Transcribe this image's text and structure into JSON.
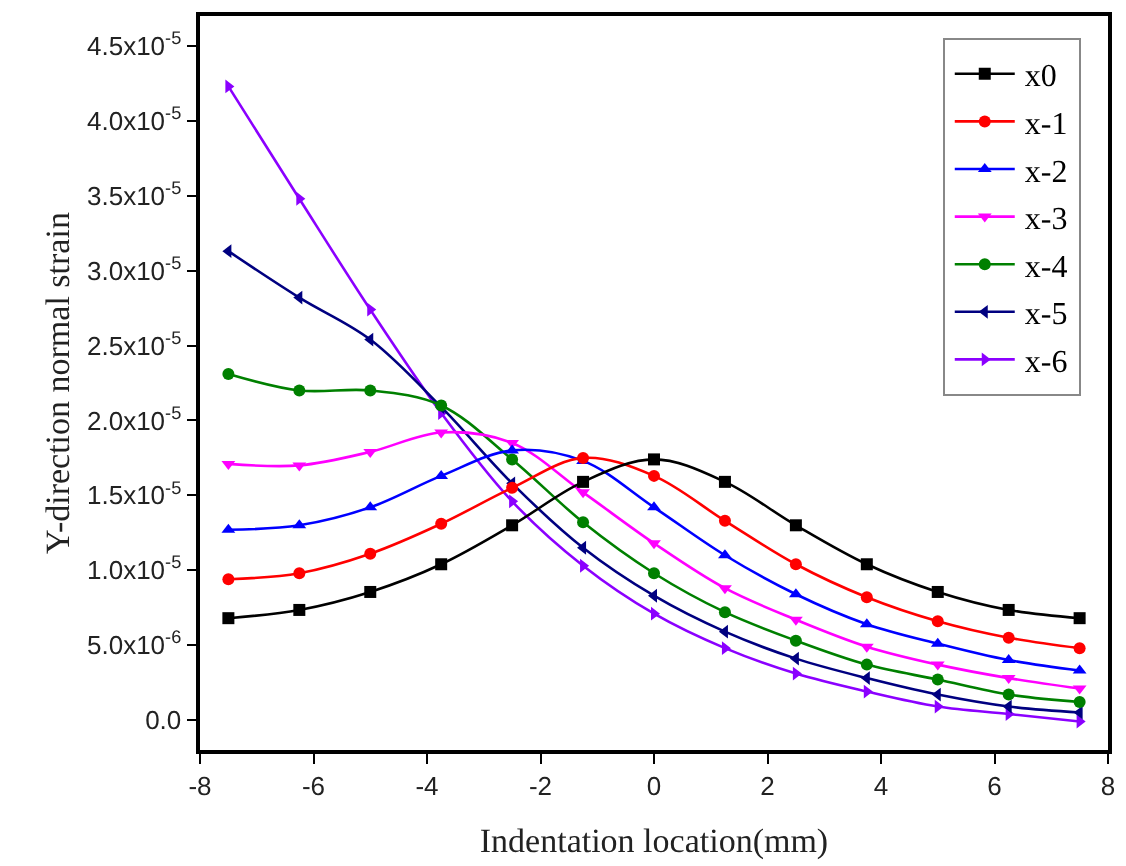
{
  "chart_data": {
    "type": "line",
    "xlabel": "Indentation location(mm)",
    "ylabel": "Y-direction normal strain",
    "x": [
      -7.5,
      -6.25,
      -5,
      -3.75,
      -2.5,
      -1.25,
      0,
      1.25,
      2.5,
      3.75,
      5,
      6.25,
      7.5
    ],
    "series": [
      {
        "name": "x0",
        "color": "#000000",
        "marker": "square",
        "values": [
          6.8e-06,
          7.35e-06,
          8.55e-06,
          1.04e-05,
          1.3e-05,
          1.59e-05,
          1.74e-05,
          1.59e-05,
          1.3e-05,
          1.04e-05,
          8.55e-06,
          7.35e-06,
          6.8e-06
        ]
      },
      {
        "name": "x-1",
        "color": "#ff0000",
        "marker": "circle",
        "values": [
          9.4e-06,
          9.8e-06,
          1.11e-05,
          1.31e-05,
          1.55e-05,
          1.75e-05,
          1.63e-05,
          1.33e-05,
          1.04e-05,
          8.2e-06,
          6.6e-06,
          5.5e-06,
          4.8e-06
        ]
      },
      {
        "name": "x-2",
        "color": "#0000ff",
        "marker": "triangle",
        "values": [
          1.27e-05,
          1.3e-05,
          1.42e-05,
          1.63e-05,
          1.8e-05,
          1.73e-05,
          1.42e-05,
          1.1e-05,
          8.4e-06,
          6.4e-06,
          5.1e-06,
          4e-06,
          3.3e-06
        ]
      },
      {
        "name": "x-3",
        "color": "#ff00ff",
        "marker": "triangle-down",
        "values": [
          1.71e-05,
          1.7e-05,
          1.79e-05,
          1.92e-05,
          1.85e-05,
          1.52e-05,
          1.18e-05,
          8.8e-06,
          6.7e-06,
          4.9e-06,
          3.7e-06,
          2.8e-06,
          2.1e-06
        ]
      },
      {
        "name": "x-4",
        "color": "#008000",
        "marker": "circle",
        "values": [
          2.31e-05,
          2.2e-05,
          2.2e-05,
          2.1e-05,
          1.74e-05,
          1.32e-05,
          9.8e-06,
          7.2e-06,
          5.3e-06,
          3.7e-06,
          2.7e-06,
          1.7e-06,
          1.2e-06
        ]
      },
      {
        "name": "x-5",
        "color": "#000080",
        "marker": "triangle-left",
        "values": [
          3.13e-05,
          2.82e-05,
          2.54e-05,
          2.09e-05,
          1.58e-05,
          1.15e-05,
          8.3e-06,
          5.9e-06,
          4.1e-06,
          2.8e-06,
          1.7e-06,
          9e-07,
          5e-07
        ]
      },
      {
        "name": "x-6",
        "color": "#8b00ff",
        "marker": "triangle-right",
        "values": [
          4.23e-05,
          3.48e-05,
          2.74e-05,
          2.05e-05,
          1.46e-05,
          1.03e-05,
          7.1e-06,
          4.8e-06,
          3.1e-06,
          1.9e-06,
          9e-07,
          4e-07,
          -1e-07
        ]
      }
    ],
    "xlim": [
      -8,
      8
    ],
    "xticks": [
      -8,
      -6,
      -4,
      -2,
      0,
      2,
      4,
      6,
      8
    ],
    "ylim": [
      -2e-06,
      4.7e-05
    ],
    "yticks": [
      {
        "value": 0,
        "label": "0.0"
      },
      {
        "value": 5e-06,
        "label": "5.0x10$^{-6}$"
      },
      {
        "value": 1e-05,
        "label": "1.0x10$^{-5}$"
      },
      {
        "value": 1.5e-05,
        "label": "1.5x10$^{-5}$"
      },
      {
        "value": 2e-05,
        "label": "2.0x10$^{-5}$"
      },
      {
        "value": 2.5e-05,
        "label": "2.5x10$^{-5}$"
      },
      {
        "value": 3e-05,
        "label": "3.0x10$^{-5}$"
      },
      {
        "value": 3.5e-05,
        "label": "3.5x10$^{-5}$"
      },
      {
        "value": 4e-05,
        "label": "4.0x10$^{-5}$"
      },
      {
        "value": 4.5e-05,
        "label": "4.5x10$^{-5}$"
      }
    ],
    "legend": "top right",
    "line_style": "solid"
  }
}
